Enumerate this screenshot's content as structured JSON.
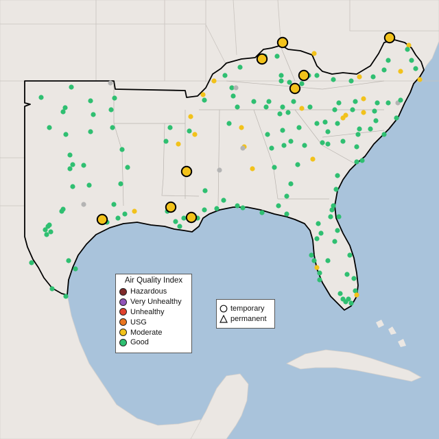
{
  "aqi_legend": {
    "title": "Air Quality Index",
    "categories": [
      {
        "label": "Hazardous",
        "color": "#7e2a2a"
      },
      {
        "label": "Very Unhealthy",
        "color": "#8f53b8"
      },
      {
        "label": "Unhealthy",
        "color": "#e0412e"
      },
      {
        "label": "USG",
        "color": "#e9751f"
      },
      {
        "label": "Moderate",
        "color": "#f2c21b"
      },
      {
        "label": "Good",
        "color": "#2fbf71"
      }
    ]
  },
  "site_legend": {
    "temporary": "temporary",
    "permanent": "permanent"
  },
  "colors": {
    "ocean": "#a9c3db",
    "land": "#ebe7e3",
    "region_border": "#000000",
    "no_data": "#b4b4b4"
  }
}
